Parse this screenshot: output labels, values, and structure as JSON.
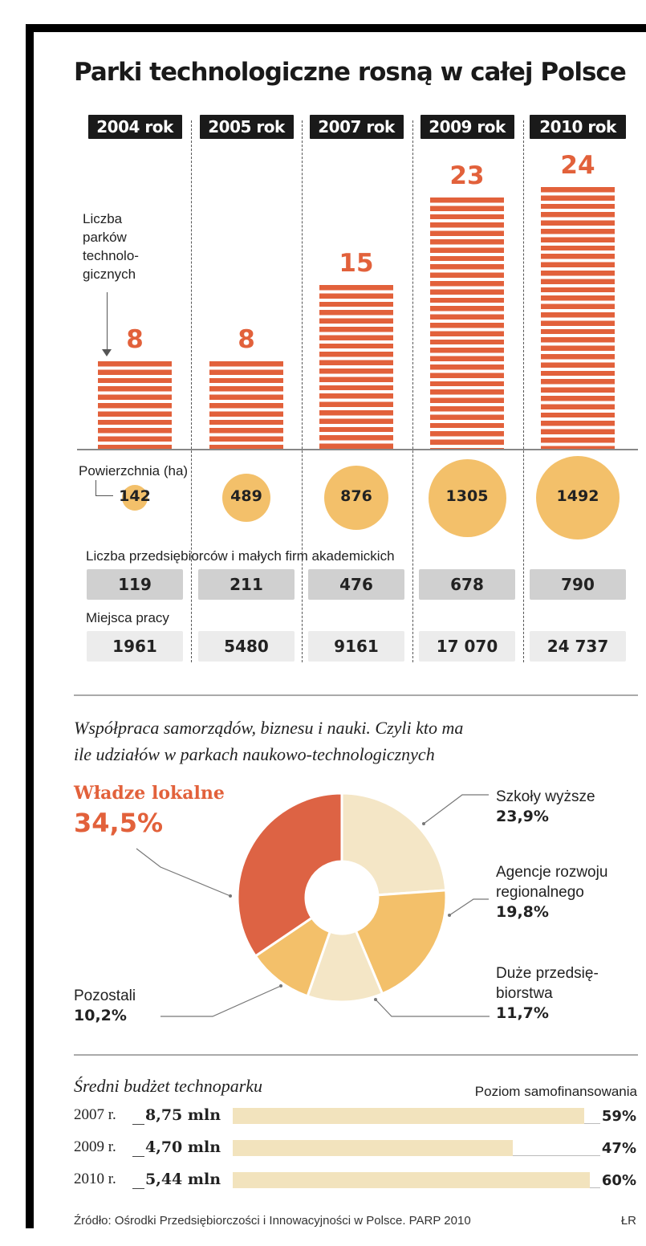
{
  "title": "Parki technologiczne rosną w całej Polsce",
  "chart_data": [
    {
      "type": "bar",
      "categories": [
        "2004 rok",
        "2005 rok",
        "2007 rok",
        "2009 rok",
        "2010 rok"
      ],
      "values": [
        8,
        8,
        15,
        23,
        24
      ],
      "ylabel": "Liczba parków technologicznych",
      "color": "#e2613b"
    },
    {
      "type": "table",
      "rows": [
        {
          "label": "Powierzchnia (ha)",
          "values": [
            "142",
            "489",
            "876",
            "1305",
            "1492"
          ],
          "numeric": [
            142,
            489,
            876,
            1305,
            1492
          ]
        },
        {
          "label": "Liczba przedsiębiorców i małych firm akademickich",
          "values": [
            "119",
            "211",
            "476",
            "678",
            "790"
          ]
        },
        {
          "label": "Miejsca pracy",
          "values": [
            "1961",
            "5480",
            "9161",
            "17 070",
            "24 737"
          ]
        }
      ]
    },
    {
      "type": "pie",
      "title": "Współpraca samorządów, biznesu i nauki. Czyli kto ma",
      "subtitle": "ile udziałów w parkach naukowo-technologicznych",
      "donut": true,
      "slices": [
        {
          "label": "Władze lokalne",
          "value": 34.5,
          "value_text": "34,5%",
          "color": "#dd6344"
        },
        {
          "label_lines": [
            "Szkoły wyższe"
          ],
          "value": 23.9,
          "value_text": "23,9%",
          "color": "#f4e6c6"
        },
        {
          "label_lines": [
            "Agencje rozwoju",
            "regionalnego"
          ],
          "value": 19.8,
          "value_text": "19,8%",
          "color": "#f3c06a"
        },
        {
          "label_lines": [
            "Duże przedsię-",
            "biorstwa"
          ],
          "value": 11.7,
          "value_text": "11,7%",
          "color": "#f4e6c6"
        },
        {
          "label_lines": [
            "Pozostali"
          ],
          "value": 10.2,
          "value_text": "10,2%",
          "color": "#f3c06a"
        }
      ]
    },
    {
      "type": "bar",
      "title": "Średni budżet technoparku",
      "legend": "Poziom samofinansowania",
      "rows": [
        {
          "year": "2007 r.",
          "budget": "8,75 mln",
          "self_financing": 59,
          "self_financing_text": "59%"
        },
        {
          "year": "2009 r.",
          "budget": "4,70 mln",
          "self_financing": 47,
          "self_financing_text": "47%"
        },
        {
          "year": "2010 r.",
          "budget": "5,44 mln",
          "self_financing": 60,
          "self_financing_text": "60%"
        }
      ],
      "color": "#f2e3bd"
    }
  ],
  "source": "Źródło: Ośrodki Przedsiębiorczości i Innowacyjności w Polsce. PARP 2010",
  "credit": "ŁR"
}
